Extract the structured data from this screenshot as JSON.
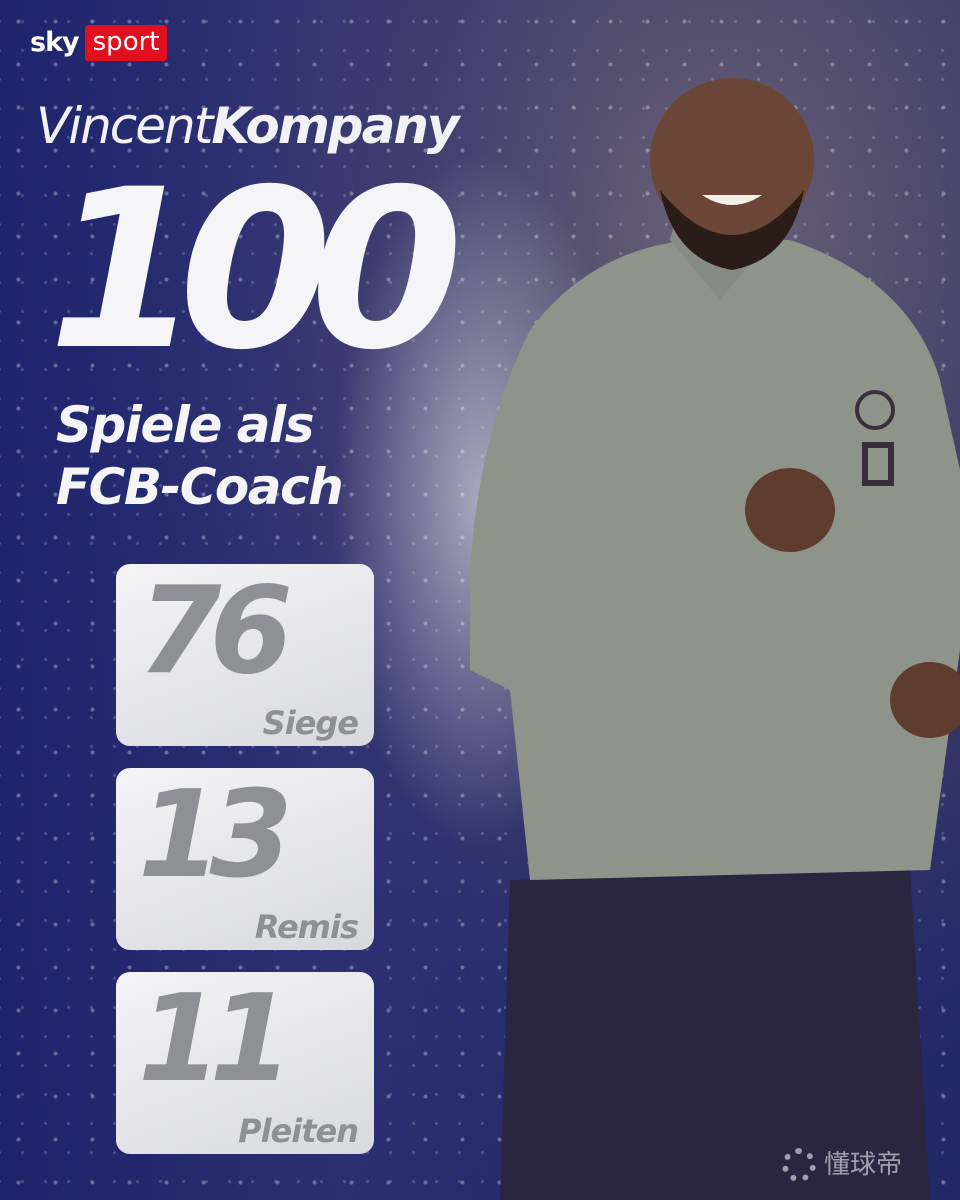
{
  "brand": {
    "logo_text_1": "sky",
    "logo_text_2": "sport",
    "accent": "#e0101e"
  },
  "headline": {
    "first_name": "Vincent",
    "last_name": "Kompany",
    "games": "100",
    "subtitle_1": "Spiele als",
    "subtitle_2": "FCB-Coach"
  },
  "stats": [
    {
      "value": "76",
      "label": "Siege"
    },
    {
      "value": "13",
      "label": "Remis"
    },
    {
      "value": "11",
      "label": "Pleiten"
    }
  ],
  "watermark": {
    "text": "懂球帝"
  }
}
